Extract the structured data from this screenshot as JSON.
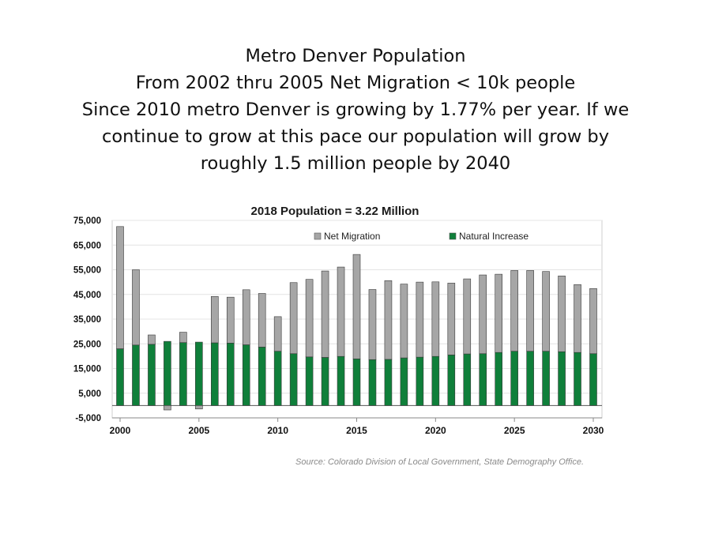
{
  "slide": {
    "title_lines": [
      "Metro Denver Population",
      "From 2002 thru 2005 Net Migration < 10k people",
      "Since 2010 metro Denver is growing by  1.77% per year. If we",
      "continue to grow at this pace our population will grow by",
      "roughly 1.5 million people by 2040"
    ],
    "source": "Source: Colorado Division of Local Government, State Demography Office."
  },
  "colors": {
    "net_migration": "#a6a6a6",
    "natural_increase": "#0f7f3a"
  },
  "chart_data": {
    "type": "bar",
    "stacked": true,
    "title": "2018 Population = 3.22 Million",
    "xlabel": "",
    "ylabel": "",
    "ylim": [
      -5000,
      75000
    ],
    "yticks": [
      75000,
      65000,
      55000,
      45000,
      35000,
      25000,
      15000,
      5000,
      -5000
    ],
    "ytick_labels": [
      "75,000",
      "65,000",
      "55,000",
      "45,000",
      "35,000",
      "25,000",
      "15,000",
      "5,000",
      "-5,000"
    ],
    "xticks": [
      2000,
      2005,
      2010,
      2015,
      2020,
      2025,
      2030
    ],
    "xtick_labels": [
      "2000",
      "2005",
      "2010",
      "2015",
      "2020",
      "2025",
      "2030"
    ],
    "grid": true,
    "legend": "top",
    "categories": [
      2000,
      2001,
      2002,
      2003,
      2004,
      2005,
      2006,
      2007,
      2008,
      2009,
      2010,
      2011,
      2012,
      2013,
      2014,
      2015,
      2016,
      2017,
      2018,
      2019,
      2020,
      2021,
      2022,
      2023,
      2024,
      2025,
      2026,
      2027,
      2028,
      2029,
      2030
    ],
    "series": [
      {
        "name": "Natural Increase",
        "values": [
          23000,
          24500,
          24800,
          26000,
          25500,
          25700,
          25400,
          25300,
          24600,
          23700,
          22000,
          21000,
          19700,
          19500,
          19900,
          18900,
          18600,
          18700,
          19300,
          19600,
          19900,
          20500,
          20900,
          21000,
          21500,
          22000,
          22000,
          22000,
          21800,
          21500,
          21000
        ]
      },
      {
        "name": "Net Migration",
        "values": [
          49500,
          30500,
          3800,
          -1800,
          4200,
          -1400,
          18800,
          18600,
          22300,
          21700,
          14000,
          28800,
          31400,
          35000,
          36200,
          42300,
          28400,
          31900,
          29900,
          30400,
          30200,
          29100,
          30400,
          31900,
          31700,
          32700,
          32700,
          32300,
          30700,
          27500,
          26400
        ]
      }
    ]
  }
}
